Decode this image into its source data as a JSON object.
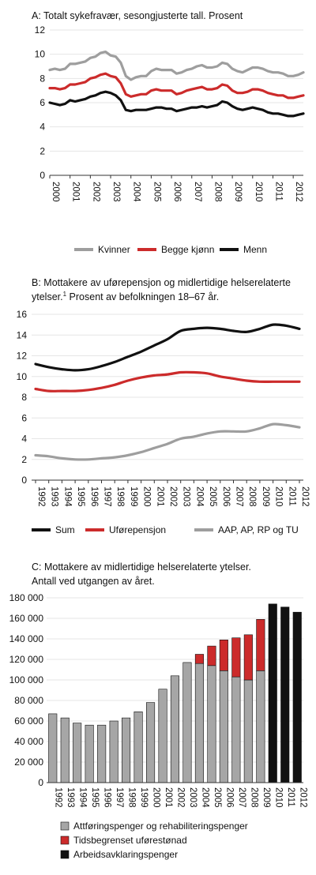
{
  "colors": {
    "kvinner": "#9e9e9e",
    "begge": "#cc2b2b",
    "menn": "#111111",
    "grid": "#e6e6e6",
    "gray_bar": "#a6a6a6",
    "red_bar": "#cc2b2b",
    "black_bar": "#111111"
  },
  "chart_data": [
    {
      "type": "line",
      "title": "A: Totalt sykefravær, sesongjusterte tall. Prosent",
      "x_labels": [
        "2000",
        "2001",
        "2002",
        "2003",
        "2004",
        "2005",
        "2006",
        "2007",
        "2008",
        "2009",
        "2010",
        "2011",
        "2012"
      ],
      "ylim": [
        0,
        12
      ],
      "y_ticks": [
        "0",
        "2",
        "4",
        "6",
        "8",
        "10",
        "12"
      ],
      "x": [
        2000.0,
        2000.25,
        2000.5,
        2000.75,
        2001.0,
        2001.25,
        2001.5,
        2001.75,
        2002.0,
        2002.25,
        2002.5,
        2002.75,
        2003.0,
        2003.25,
        2003.5,
        2003.75,
        2004.0,
        2004.25,
        2004.5,
        2004.75,
        2005.0,
        2005.25,
        2005.5,
        2005.75,
        2006.0,
        2006.25,
        2006.5,
        2006.75,
        2007.0,
        2007.25,
        2007.5,
        2007.75,
        2008.0,
        2008.25,
        2008.5,
        2008.75,
        2009.0,
        2009.25,
        2009.5,
        2009.75,
        2010.0,
        2010.25,
        2010.5,
        2010.75,
        2011.0,
        2011.25,
        2011.5,
        2011.75,
        2012.0,
        2012.25,
        2012.5
      ],
      "series": [
        {
          "name": "Kvinner",
          "color": "#9e9e9e",
          "values": [
            8.7,
            8.8,
            8.7,
            8.8,
            9.2,
            9.2,
            9.3,
            9.4,
            9.7,
            9.8,
            10.1,
            10.2,
            9.9,
            9.8,
            9.3,
            8.2,
            7.9,
            8.1,
            8.2,
            8.2,
            8.6,
            8.8,
            8.7,
            8.7,
            8.7,
            8.4,
            8.5,
            8.7,
            8.8,
            9.0,
            9.1,
            8.9,
            8.9,
            9.0,
            9.3,
            9.2,
            8.8,
            8.6,
            8.5,
            8.7,
            8.9,
            8.9,
            8.8,
            8.6,
            8.5,
            8.5,
            8.4,
            8.2,
            8.2,
            8.3,
            8.5
          ]
        },
        {
          "name": "Begge kjønn",
          "color": "#cc2b2b",
          "values": [
            7.2,
            7.2,
            7.1,
            7.2,
            7.5,
            7.5,
            7.6,
            7.7,
            8.0,
            8.1,
            8.3,
            8.4,
            8.2,
            8.1,
            7.6,
            6.7,
            6.5,
            6.6,
            6.7,
            6.7,
            7.0,
            7.1,
            7.0,
            7.0,
            7.0,
            6.7,
            6.8,
            7.0,
            7.1,
            7.2,
            7.3,
            7.1,
            7.1,
            7.2,
            7.5,
            7.4,
            7.0,
            6.8,
            6.8,
            6.9,
            7.1,
            7.1,
            7.0,
            6.8,
            6.7,
            6.6,
            6.6,
            6.4,
            6.4,
            6.5,
            6.6
          ]
        },
        {
          "name": "Menn",
          "color": "#111111",
          "values": [
            6.0,
            5.9,
            5.8,
            5.9,
            6.2,
            6.1,
            6.2,
            6.3,
            6.5,
            6.6,
            6.8,
            6.9,
            6.8,
            6.6,
            6.2,
            5.4,
            5.3,
            5.4,
            5.4,
            5.4,
            5.5,
            5.6,
            5.6,
            5.5,
            5.5,
            5.3,
            5.4,
            5.5,
            5.6,
            5.6,
            5.7,
            5.6,
            5.7,
            5.8,
            6.1,
            6.0,
            5.7,
            5.5,
            5.4,
            5.5,
            5.6,
            5.5,
            5.4,
            5.2,
            5.1,
            5.1,
            5.0,
            4.9,
            4.9,
            5.0,
            5.1
          ]
        }
      ]
    },
    {
      "type": "line",
      "title_line1": "B: Mottakere av uførepensjon og midlertidige helserelaterte",
      "title_line2_pre": "ytelser.",
      "title_line2_sup": "1",
      "title_line2_post": " Prosent av befolkningen 18–67 år.",
      "categories": [
        "1992",
        "1993",
        "1994",
        "1995",
        "1996",
        "1997",
        "1998",
        "1999",
        "2000",
        "2001",
        "2002",
        "2003",
        "2004",
        "2005",
        "2006",
        "2007",
        "2008",
        "2009",
        "2010",
        "2011",
        "2012"
      ],
      "ylim": [
        0,
        16
      ],
      "y_ticks": [
        "0",
        "2",
        "4",
        "6",
        "8",
        "10",
        "12",
        "14",
        "16"
      ],
      "series": [
        {
          "name": "Sum",
          "color": "#111111",
          "values": [
            11.2,
            10.9,
            10.7,
            10.6,
            10.7,
            11.0,
            11.4,
            11.9,
            12.4,
            13.0,
            13.6,
            14.4,
            14.6,
            14.7,
            14.6,
            14.4,
            14.3,
            14.6,
            15.0,
            14.9,
            14.6
          ]
        },
        {
          "name": "Uførepensjon",
          "color": "#cc2b2b",
          "values": [
            8.8,
            8.6,
            8.6,
            8.6,
            8.7,
            8.9,
            9.2,
            9.6,
            9.9,
            10.1,
            10.2,
            10.4,
            10.4,
            10.3,
            10.0,
            9.8,
            9.6,
            9.5,
            9.5,
            9.5,
            9.5
          ]
        },
        {
          "name": "AAP, AP, RP og TU",
          "color": "#9e9e9e",
          "values": [
            2.4,
            2.3,
            2.1,
            2.0,
            2.0,
            2.1,
            2.2,
            2.4,
            2.7,
            3.1,
            3.5,
            4.0,
            4.2,
            4.5,
            4.7,
            4.7,
            4.7,
            5.0,
            5.4,
            5.3,
            5.1
          ]
        }
      ]
    },
    {
      "type": "bar",
      "title_line1": "C: Mottakere av midlertidige helserelaterte ytelser.",
      "title_line2": "Antall ved utgangen av året.",
      "categories": [
        "1992",
        "1993",
        "1994",
        "1995",
        "1996",
        "1997",
        "1998",
        "1999",
        "2000",
        "2001",
        "2002",
        "2003",
        "2004",
        "2005",
        "2006",
        "2007",
        "2008",
        "2009",
        "2010",
        "2011",
        "2012"
      ],
      "ylim": [
        0,
        180000
      ],
      "y_ticks": [
        "0",
        "20 000",
        "40 000",
        "60 000",
        "80 000",
        "100 000",
        "120 000",
        "140 000",
        "160 000",
        "180 000"
      ],
      "series": [
        {
          "name": "Attføringspenger og rehabiliteringspenger",
          "color": "#a6a6a6",
          "values": [
            67000,
            63000,
            58000,
            56000,
            56000,
            60000,
            63000,
            69000,
            78000,
            91000,
            104000,
            117000,
            116000,
            114000,
            109000,
            103000,
            100000,
            109000,
            0,
            0,
            0
          ]
        },
        {
          "name": "Tidsbegrenset uførestønad",
          "color": "#cc2b2b",
          "values": [
            0,
            0,
            0,
            0,
            0,
            0,
            0,
            0,
            0,
            0,
            0,
            0,
            9000,
            19000,
            30000,
            38000,
            44000,
            50000,
            0,
            0,
            0
          ]
        },
        {
          "name": "Arbeidsavklaringspenger",
          "color": "#111111",
          "values": [
            0,
            0,
            0,
            0,
            0,
            0,
            0,
            0,
            0,
            0,
            0,
            0,
            0,
            0,
            0,
            0,
            0,
            0,
            174000,
            171000,
            166000
          ]
        }
      ]
    }
  ]
}
